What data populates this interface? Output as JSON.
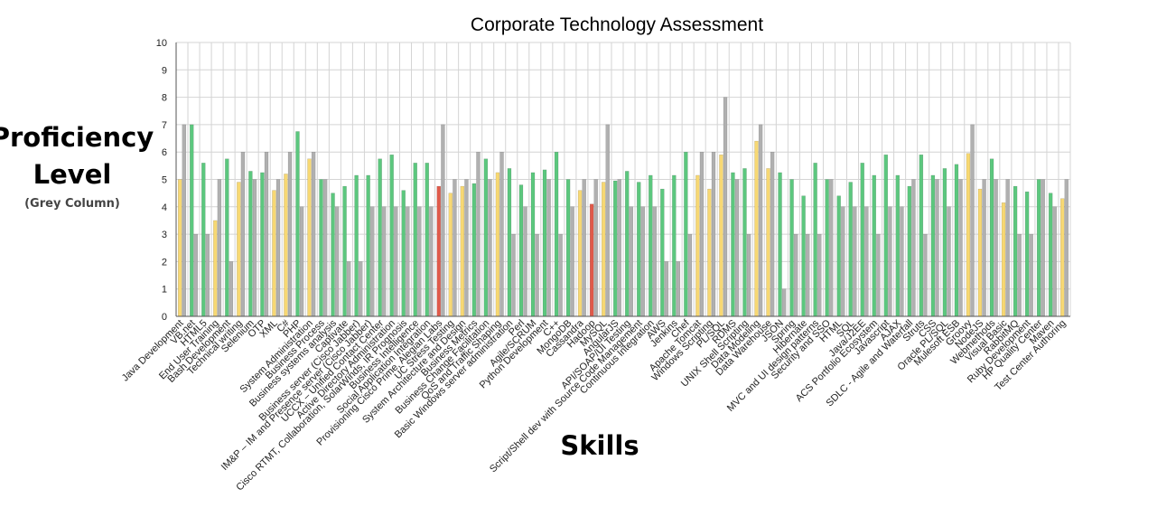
{
  "colors": {
    "green": "#5cc77e",
    "yellow": "#f7d873",
    "grey": "#b0b0b0",
    "red": "#e05a4a",
    "grid": "#d4d4d4",
    "axis": "#555555"
  },
  "chart_data": {
    "type": "bar",
    "title": "Corporate Technology Assessment",
    "ylabel_line1": "Proficiency",
    "ylabel_line2": "Level",
    "ylabel_note": "(Grey Column)",
    "xlabel": "Skills",
    "ylim": [
      0,
      10
    ],
    "yticks": [
      0,
      1,
      2,
      3,
      4,
      5,
      6,
      7,
      8,
      9,
      10
    ],
    "grid": true,
    "categories": [
      "Java Development",
      "VB.net",
      "HTML5",
      "End User Training",
      "Bash Development",
      "Technical writing",
      "Selenium",
      "OTP",
      "XML",
      "C#",
      "PHP",
      "System Administration",
      "Business Process",
      "Business systems analysis",
      "Captivate",
      "Business server (Cisco Jabber)",
      "IM&P – IM and Presence server (Cisco Jabber)",
      "UCCX – Unified Contact Center",
      "Active Directory Administration",
      "Cisco RTMT, Collaboration, SolarWinds, IR Prognosis",
      "Business Intelligence",
      "Social Application Integration",
      "Provisioning Cisco Prime, Alegian Labs",
      "UC Stress Testing",
      "System Architecture and Design",
      "Business Metrics",
      "Business Change Facilitation",
      "QoS and Traffic Shaping",
      "Basic Windows server administration",
      "Perl",
      "Agile/SCRUM",
      "Python Development",
      "C++",
      "MongoDB",
      "Cassandra",
      "Hadoop",
      "MySQL",
      "AngularJS",
      "API/SOAP/UI Testing",
      "Script/Shell dev with Source Code Management",
      "Continuous Integration",
      "AWS",
      "Jenkins",
      "Chef",
      "Apache Tomcat",
      "Windows Scripting",
      "PL/SQL",
      "RDMS",
      "UNIX Shell Scripting",
      "Data Modeling",
      "Data Warehouse",
      "JSON",
      "Spring",
      "Hibernate",
      "MVC and UI design patterns",
      "Security and SSO",
      "HTML",
      "SQL",
      "Java/J2EE",
      "ACS Portfolio Ecosystem",
      "Javascript",
      "AJAX",
      "SDLC - Agile and Waterfall",
      "Struts",
      "CSS",
      "Oracle PL/SQL",
      "Mulesoft ESB",
      "Groovy",
      "NodeJS",
      "Webmethods",
      "Visual Basic",
      "RabbitMQ",
      "Ruby Development",
      "HP Quality Center",
      "Maven",
      "Test Center Authoring"
    ],
    "series": [
      {
        "values": [
          5,
          7,
          5.6,
          3.5,
          5.75,
          4.9,
          5.3,
          5.25,
          4.6,
          5.2,
          6.75,
          5.75,
          5,
          4.5,
          4.75,
          5.15,
          5.15,
          5.75,
          5.9,
          4.6,
          5.6,
          5.6,
          4.75,
          4.5,
          4.75,
          4.85,
          5.75,
          5.25,
          5.4,
          4.8,
          5.25,
          5.35,
          6,
          5,
          4.6,
          4.1,
          4.9,
          4.95,
          5.3,
          4.9,
          5.15,
          4.65,
          5.15,
          6,
          5.15,
          4.65,
          5.9,
          5.25,
          5.4,
          6.4,
          5.4,
          5.25,
          5,
          4.4,
          5.6,
          5,
          4.4,
          4.9,
          5.6,
          5.15,
          5.9,
          5.15,
          4.75,
          5.9,
          5.15,
          5.4,
          5.55,
          5.95,
          4.65,
          5.75,
          4.15,
          4.75,
          4.55,
          5,
          4.5,
          4.3
        ],
        "colors": [
          "yellow",
          "green",
          "green",
          "yellow",
          "green",
          "yellow",
          "green",
          "green",
          "yellow",
          "yellow",
          "green",
          "yellow",
          "green",
          "green",
          "green",
          "green",
          "green",
          "green",
          "green",
          "green",
          "green",
          "green",
          "red",
          "yellow",
          "yellow",
          "green",
          "green",
          "yellow",
          "green",
          "green",
          "green",
          "green",
          "green",
          "green",
          "yellow",
          "red",
          "yellow",
          "green",
          "green",
          "green",
          "green",
          "green",
          "green",
          "green",
          "yellow",
          "yellow",
          "yellow",
          "green",
          "green",
          "yellow",
          "yellow",
          "green",
          "green",
          "green",
          "green",
          "green",
          "green",
          "green",
          "green",
          "green",
          "green",
          "green",
          "green",
          "green",
          "green",
          "green",
          "green",
          "yellow",
          "yellow",
          "green",
          "yellow",
          "green",
          "green",
          "green",
          "green",
          "yellow"
        ]
      },
      {
        "name": "Proficiency Level",
        "values": [
          7,
          3,
          3,
          5,
          2,
          6,
          5,
          6,
          5,
          6,
          4,
          6,
          5,
          4,
          2,
          2,
          4,
          4,
          4,
          4,
          4,
          4,
          7,
          5,
          5,
          6,
          5,
          6,
          3,
          4,
          3,
          5,
          3,
          4,
          5,
          5,
          7,
          5,
          4,
          4,
          4,
          2,
          2,
          3,
          6,
          6,
          8,
          5,
          3,
          7,
          6,
          1,
          3,
          3,
          3,
          5,
          4,
          4,
          4,
          3,
          4,
          4,
          5,
          3,
          5,
          4,
          5,
          7,
          5,
          5,
          5,
          3,
          3,
          5,
          4,
          5
        ]
      }
    ]
  }
}
